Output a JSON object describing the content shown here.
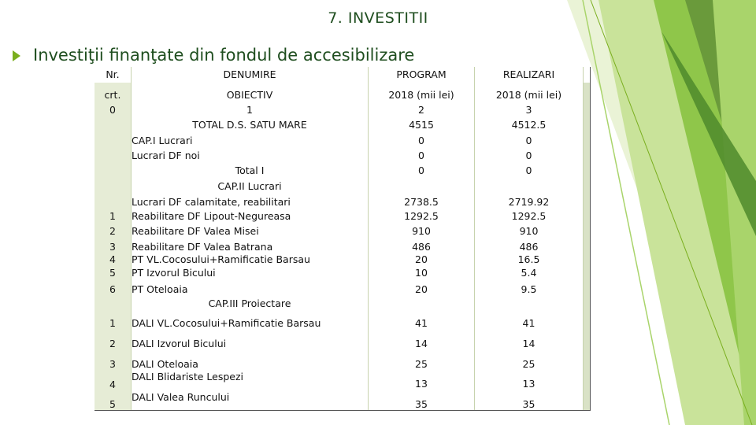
{
  "page": {
    "title": "7. INVESTITII",
    "heading": "Investiţii finanţate din fondul de accesibilizare"
  },
  "colors": {
    "accent": "#7aae1e",
    "dark_green": "#1f4e1f",
    "grid": "#c7d3ae"
  },
  "table": {
    "header": {
      "nr": "Nr.",
      "denumire": "DENUMIRE",
      "program": "PROGRAM",
      "realizari": "REALIZARI"
    },
    "rows": [
      {
        "nr": "crt.",
        "den": "OBIECTIV",
        "prog": "2018 (mii lei)",
        "real": "2018 (mii lei)"
      },
      {
        "nr": "0",
        "den": "1",
        "prog": "2",
        "real": "3"
      },
      {
        "nr": "",
        "den": "TOTAL D.S. SATU MARE",
        "prog": "4515",
        "real": "4512.5"
      },
      {
        "nr": "",
        "den": "CAP.I Lucrari",
        "prog": "0",
        "real": "0"
      },
      {
        "nr": "",
        "den": "Lucrari DF noi",
        "prog": "0",
        "real": "0"
      },
      {
        "nr": "",
        "den": "Total I",
        "prog": "0",
        "real": "0"
      },
      {
        "nr": "",
        "den": "CAP.II Lucrari",
        "prog": "",
        "real": ""
      },
      {
        "nr": "",
        "den": "Lucrari DF calamitate, reabilitari",
        "prog": "2738.5",
        "real": "2719.92"
      },
      {
        "nr": "1",
        "den": "Reabilitare DF Lipout-Negureasa",
        "prog": "1292.5",
        "real": "1292.5"
      },
      {
        "nr": "2",
        "den": "Reabilitare DF Valea Misei",
        "prog": "910",
        "real": "910"
      },
      {
        "nr": "3",
        "den": "Reabilitare DF Valea Batrana",
        "prog": "486",
        "real": "486"
      },
      {
        "nr": "4",
        "den": "PT VL.Cocosului+Ramificatie Barsau",
        "prog": "20",
        "real": "16.5"
      },
      {
        "nr": "5",
        "den": "PT Izvorul Bicului",
        "prog": "10",
        "real": "5.4"
      },
      {
        "nr": "6",
        "den": "PT Oteloaia",
        "prog": "20",
        "real": "9.5"
      },
      {
        "nr": "",
        "den": "CAP.III Proiectare",
        "prog": "",
        "real": ""
      },
      {
        "nr": "1",
        "den": "DALI VL.Cocosului+Ramificatie Barsau",
        "prog": "41",
        "real": "41"
      },
      {
        "nr": "2",
        "den": "DALI Izvorul Bicului",
        "prog": "14",
        "real": "14"
      },
      {
        "nr": "3",
        "den": "DALI Oteloaia",
        "prog": "25",
        "real": "25"
      },
      {
        "nr": "",
        "den": "DALI Blidariste Lespezi",
        "prog": "",
        "real": ""
      },
      {
        "nr": "4",
        "den": "",
        "prog": "13",
        "real": "13"
      },
      {
        "nr": "5",
        "den": "DALI Valea Runcului",
        "prog": "35",
        "real": "35"
      }
    ]
  }
}
